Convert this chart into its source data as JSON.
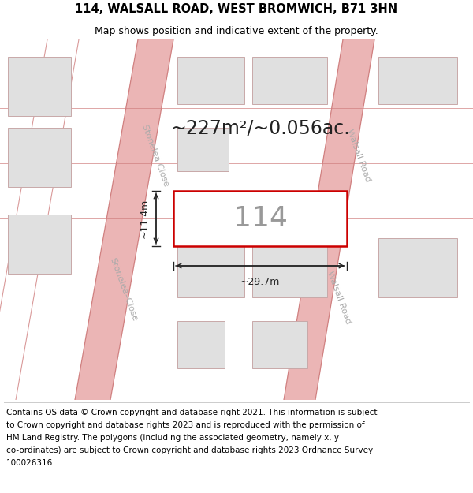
{
  "title": "114, WALSALL ROAD, WEST BROMWICH, B71 3HN",
  "subtitle": "Map shows position and indicative extent of the property.",
  "footer_lines": [
    "Contains OS data © Crown copyright and database right 2021. This information is subject",
    "to Crown copyright and database rights 2023 and is reproduced with the permission of",
    "HM Land Registry. The polygons (including the associated geometry, namely x, y",
    "co-ordinates) are subject to Crown copyright and database rights 2023 Ordnance Survey",
    "100026316."
  ],
  "map_bg": "#f2f2f2",
  "road_color": "#e8a8a8",
  "road_line_color": "#d08080",
  "highlight_color": "#cc0000",
  "building_fill": "#e0e0e0",
  "building_stroke": "#c8a8a8",
  "dim_color": "#222222",
  "area_text": "~227m²/~0.056ac.",
  "label": "114",
  "dim_width": "~29.7m",
  "dim_height": "~11.4m",
  "road_label_left": "Stonelea Close",
  "road_label_right": "Walsall Road",
  "title_fontsize": 10.5,
  "subtitle_fontsize": 9,
  "area_fontsize": 17,
  "label_fontsize": 26,
  "dim_fontsize": 9,
  "footer_fontsize": 7.5
}
